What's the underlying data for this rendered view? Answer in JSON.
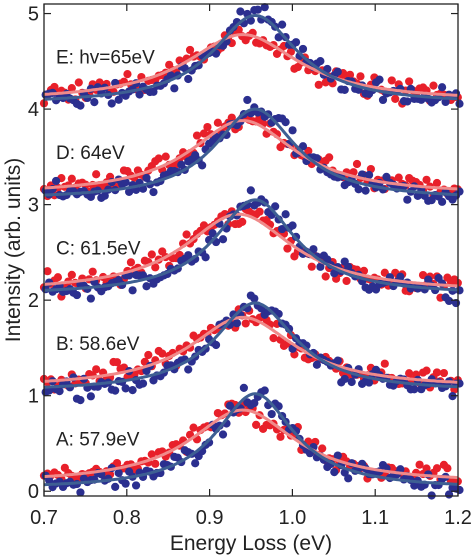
{
  "chart_data": {
    "type": "scatter",
    "title": "",
    "xlabel": "Energy Loss (eV)",
    "ylabel": "Intensity (arb. units)",
    "xlim": [
      0.7,
      1.2
    ],
    "ylim": [
      -0.05,
      5.1
    ],
    "xticks": [
      0.7,
      0.8,
      0.9,
      1.0,
      1.1,
      1.2
    ],
    "yticks": [
      0,
      1,
      2,
      3,
      4,
      5
    ],
    "xtick_labels": [
      "0.7",
      "0.8",
      "0.9",
      "1.0",
      "1.1",
      "1.2"
    ],
    "ytick_labels": [
      "0",
      "1",
      "2",
      "3",
      "4",
      "5"
    ],
    "grid": false,
    "legend": "none",
    "colors": {
      "red_points": "#e8202a",
      "blue_points": "#2b2f8f",
      "red_fit": "#f08a8a",
      "blue_fit": "#3e5f93"
    },
    "panels": [
      {
        "label": "A: 57.9eV",
        "offset": 0,
        "red_fit": {
          "peak_x": 0.94,
          "peak_y": 0.85,
          "width": 0.155,
          "base": 0.08
        },
        "blue_fit": {
          "peak_x": 0.955,
          "peak_y": 1.02,
          "width": 0.115,
          "base": 0.02
        }
      },
      {
        "label": "B: 58.6eV",
        "offset": 1,
        "red_fit": {
          "peak_x": 0.94,
          "peak_y": 0.82,
          "width": 0.155,
          "base": 0.08
        },
        "blue_fit": {
          "peak_x": 0.955,
          "peak_y": 0.97,
          "width": 0.12,
          "base": 0.04
        }
      },
      {
        "label": "C: 61.5eV",
        "offset": 2,
        "red_fit": {
          "peak_x": 0.935,
          "peak_y": 0.9,
          "width": 0.16,
          "base": 0.08
        },
        "blue_fit": {
          "peak_x": 0.955,
          "peak_y": 1.05,
          "width": 0.12,
          "base": 0.05
        }
      },
      {
        "label": "D: 64eV",
        "offset": 3,
        "red_fit": {
          "peak_x": 0.94,
          "peak_y": 0.88,
          "width": 0.155,
          "base": 0.1
        },
        "blue_fit": {
          "peak_x": 0.955,
          "peak_y": 1.0,
          "width": 0.12,
          "base": 0.05
        }
      },
      {
        "label": "E: hv=65eV",
        "offset": 4,
        "red_fit": {
          "peak_x": 0.94,
          "peak_y": 0.78,
          "width": 0.165,
          "base": 0.08
        },
        "blue_fit": {
          "peak_x": 0.955,
          "peak_y": 0.98,
          "width": 0.125,
          "base": 0.05
        }
      }
    ]
  }
}
